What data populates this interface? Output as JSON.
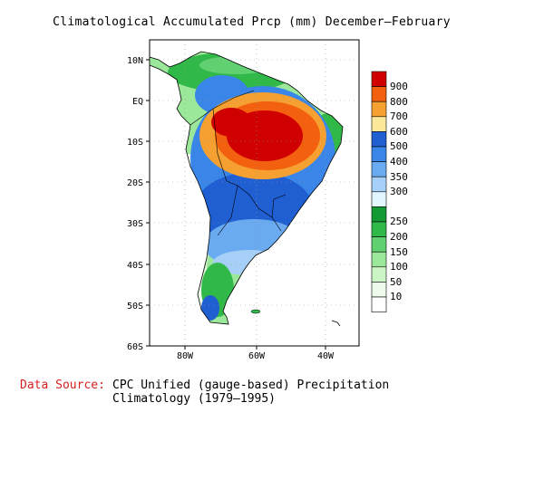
{
  "title": "Climatological Accumulated Prcp (mm) December–February",
  "axes": {
    "lat_labels": [
      "10N",
      "EQ",
      "10S",
      "20S",
      "30S",
      "40S",
      "50S",
      "60S"
    ],
    "lon_labels": [
      "80W",
      "60W",
      "40W"
    ]
  },
  "legend": {
    "entries": [
      {
        "label": "900",
        "color": "#d00000"
      },
      {
        "label": "800",
        "color": "#f26010"
      },
      {
        "label": "700",
        "color": "#f5a030"
      },
      {
        "label": "600",
        "color": "#fbe89a"
      },
      {
        "label": "500",
        "color": "#1f5fd2"
      },
      {
        "label": "400",
        "color": "#3a86e8"
      },
      {
        "label": "350",
        "color": "#6aaaf0"
      },
      {
        "label": "300",
        "color": "#a6d0f8"
      },
      {
        "label": "",
        "color": "#e2f6ff"
      },
      {
        "label": "250",
        "color": "#149a34"
      },
      {
        "label": "200",
        "color": "#30b848"
      },
      {
        "label": "150",
        "color": "#60d070"
      },
      {
        "label": "100",
        "color": "#9ce89a"
      },
      {
        "label": "50",
        "color": "#cbf5c4"
      },
      {
        "label": "10",
        "color": "#eefbea"
      },
      {
        "label": "",
        "color": "#ffffff"
      }
    ]
  },
  "source": {
    "label": "Data Source:",
    "text": "CPC Unified (gauge-based) Precipitation Climatology (1979–1995)"
  }
}
